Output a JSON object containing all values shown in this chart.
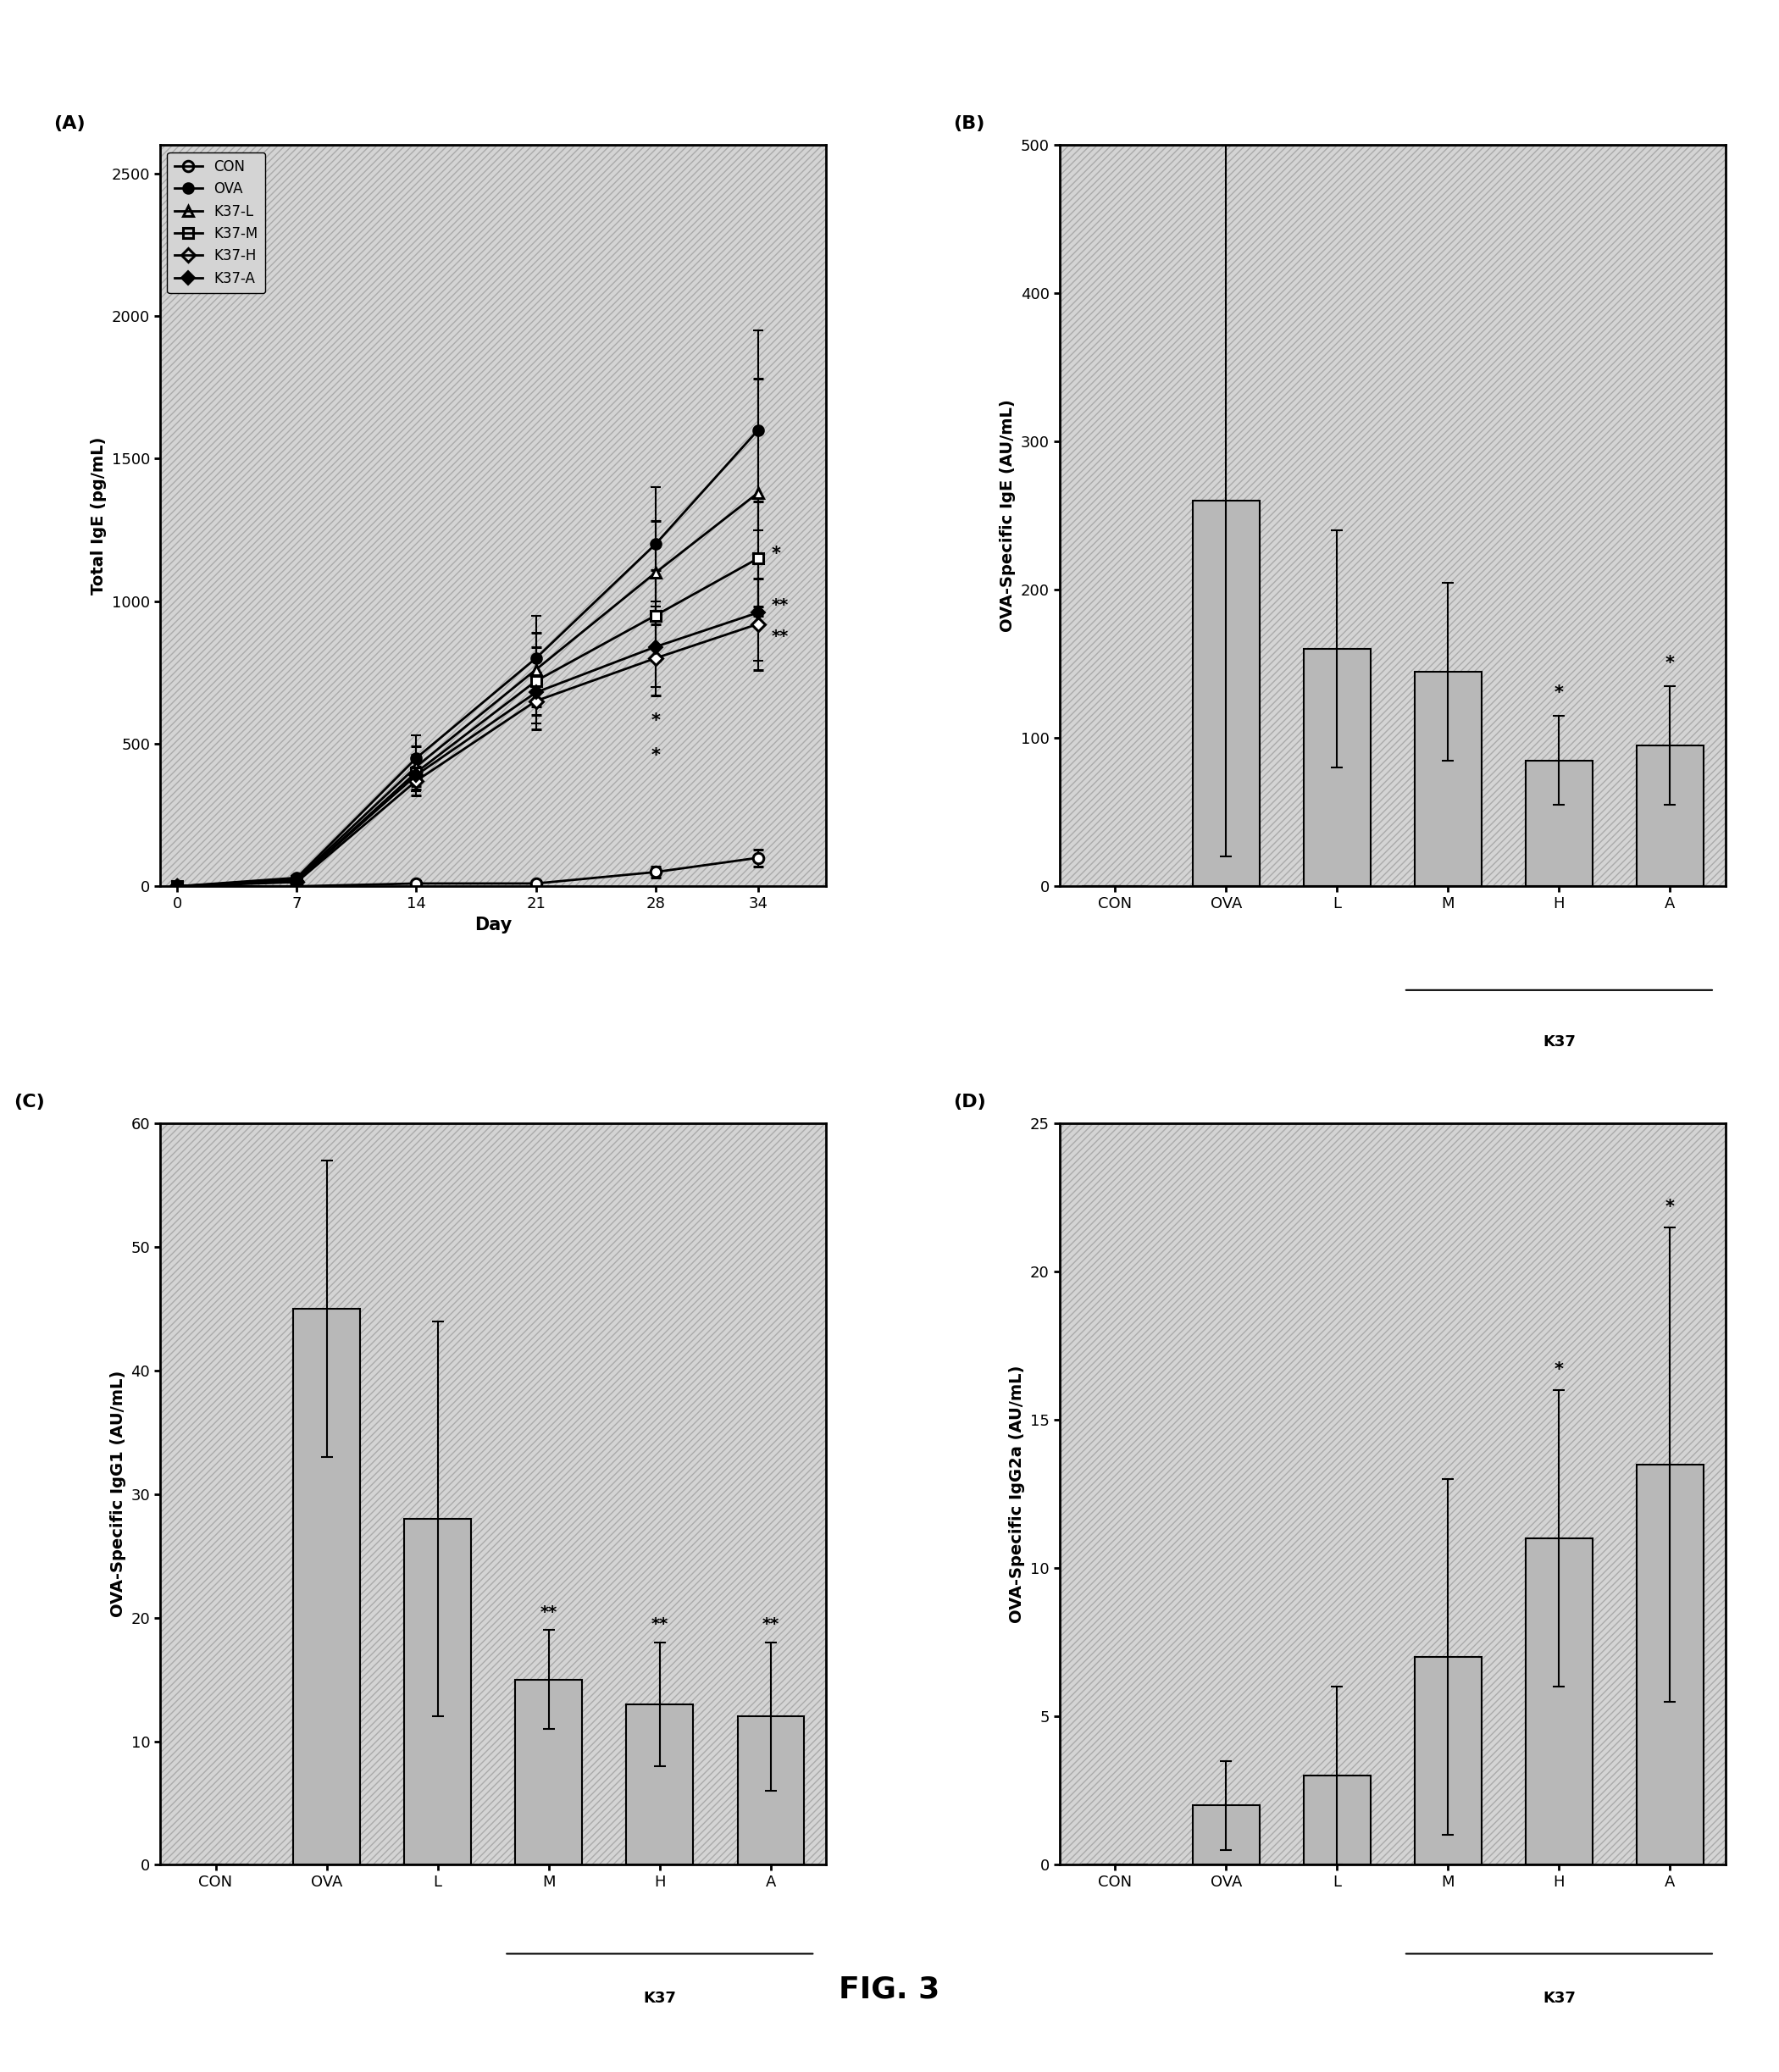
{
  "fig_title": "FIG. 3",
  "A": {
    "label": "(A)",
    "ylabel": "Total IgE (pg/mL)",
    "xlabel": "Day",
    "ylim": [
      0,
      2600
    ],
    "yticks": [
      0,
      500,
      1000,
      1500,
      2000,
      2500
    ],
    "xticks": [
      0,
      7,
      14,
      21,
      28,
      34
    ],
    "days": [
      0,
      7,
      14,
      21,
      28,
      34
    ],
    "series": {
      "CON": {
        "y": [
          0,
          0,
          10,
          10,
          50,
          100
        ],
        "yerr": [
          0,
          0,
          5,
          5,
          20,
          30
        ]
      },
      "OVA": {
        "y": [
          0,
          30,
          450,
          800,
          1200,
          1600
        ],
        "yerr": [
          0,
          10,
          80,
          150,
          200,
          350
        ]
      },
      "K37-L": {
        "y": [
          0,
          25,
          420,
          760,
          1100,
          1380
        ],
        "yerr": [
          0,
          10,
          70,
          130,
          180,
          400
        ]
      },
      "K37-M": {
        "y": [
          0,
          20,
          400,
          720,
          950,
          1150
        ],
        "yerr": [
          0,
          10,
          60,
          120,
          160,
          200
        ]
      },
      "K37-H": {
        "y": [
          0,
          15,
          370,
          650,
          800,
          920
        ],
        "yerr": [
          0,
          10,
          50,
          100,
          130,
          160
        ]
      },
      "K37-A": {
        "y": [
          0,
          20,
          390,
          680,
          840,
          960
        ],
        "yerr": [
          0,
          10,
          55,
          110,
          140,
          170
        ]
      }
    }
  },
  "B": {
    "label": "(B)",
    "ylabel": "OVA-Specific IgE (AU/mL)",
    "xlabel_group": "K37",
    "ylim": [
      0,
      500
    ],
    "yticks": [
      0,
      100,
      200,
      300,
      400,
      500
    ],
    "categories": [
      "CON",
      "OVA",
      "L",
      "M",
      "H",
      "A"
    ],
    "values": [
      0,
      260,
      160,
      145,
      85,
      95
    ],
    "yerr": [
      0,
      240,
      80,
      60,
      30,
      40
    ],
    "bar_color": "#b8b8b8",
    "sig": {
      "H": "*",
      "A": "*"
    }
  },
  "C": {
    "label": "(C)",
    "ylabel": "OVA-Specific IgG1 (AU/mL)",
    "xlabel_group": "K37",
    "ylim": [
      0,
      60
    ],
    "yticks": [
      0,
      10,
      20,
      30,
      40,
      50,
      60
    ],
    "categories": [
      "CON",
      "OVA",
      "L",
      "M",
      "H",
      "A"
    ],
    "values": [
      0,
      45,
      28,
      15,
      13,
      12
    ],
    "yerr": [
      0,
      12,
      16,
      4,
      5,
      6
    ],
    "bar_color": "#b8b8b8",
    "sig": {
      "M": "**",
      "H": "**",
      "A": "**"
    }
  },
  "D": {
    "label": "(D)",
    "ylabel": "OVA-Specific IgG2a (AU/mL)",
    "xlabel_group": "K37",
    "ylim": [
      0,
      25
    ],
    "yticks": [
      0,
      5,
      10,
      15,
      20,
      25
    ],
    "categories": [
      "CON",
      "OVA",
      "L",
      "M",
      "H",
      "A"
    ],
    "values": [
      0,
      2,
      3,
      7,
      11,
      13.5
    ],
    "yerr": [
      0,
      1.5,
      3,
      6,
      5,
      8
    ],
    "bar_color": "#b8b8b8",
    "sig": {
      "H": "*",
      "A": "*"
    }
  }
}
